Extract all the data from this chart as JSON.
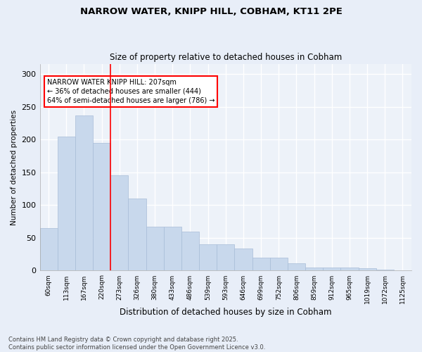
{
  "title1": "NARROW WATER, KNIPP HILL, COBHAM, KT11 2PE",
  "title2": "Size of property relative to detached houses in Cobham",
  "xlabel": "Distribution of detached houses by size in Cobham",
  "ylabel": "Number of detached properties",
  "categories": [
    "60sqm",
    "113sqm",
    "167sqm",
    "220sqm",
    "273sqm",
    "326sqm",
    "380sqm",
    "433sqm",
    "486sqm",
    "539sqm",
    "593sqm",
    "646sqm",
    "699sqm",
    "752sqm",
    "806sqm",
    "859sqm",
    "912sqm",
    "965sqm",
    "1019sqm",
    "1072sqm",
    "1125sqm"
  ],
  "values": [
    65,
    205,
    237,
    195,
    145,
    110,
    67,
    67,
    60,
    40,
    40,
    34,
    20,
    20,
    11,
    5,
    5,
    5,
    4,
    2,
    1
  ],
  "bar_color": "#c8d8ec",
  "bar_edge_color": "#a8bdd8",
  "vline_x_index": 3,
  "vline_color": "red",
  "annotation_text": "NARROW WATER KNIPP HILL: 207sqm\n← 36% of detached houses are smaller (444)\n64% of semi-detached houses are larger (786) →",
  "annotation_box_color": "white",
  "annotation_box_edge": "red",
  "footer": "Contains HM Land Registry data © Crown copyright and database right 2025.\nContains public sector information licensed under the Open Government Licence v3.0.",
  "ylim": [
    0,
    315
  ],
  "yticks": [
    0,
    50,
    100,
    150,
    200,
    250,
    300
  ],
  "bg_color": "#e8eef8",
  "plot_bg_color": "#edf2f9",
  "grid_color": "white"
}
